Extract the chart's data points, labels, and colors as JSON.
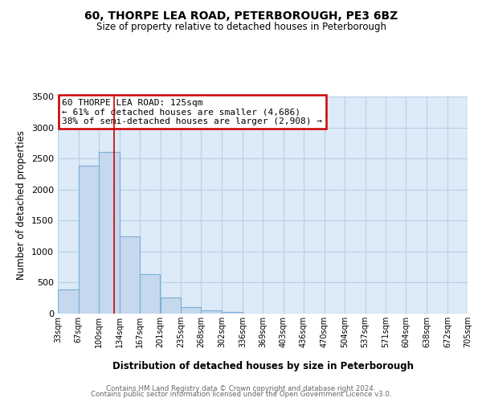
{
  "title": "60, THORPE LEA ROAD, PETERBOROUGH, PE3 6BZ",
  "subtitle": "Size of property relative to detached houses in Peterborough",
  "xlabel": "Distribution of detached houses by size in Peterborough",
  "ylabel": "Number of detached properties",
  "bar_color": "#c5d8ee",
  "bar_edgecolor": "#7aafd4",
  "background_color": "#ffffff",
  "plot_bg_color": "#ddeaf7",
  "grid_color": "#b8cfe8",
  "annotation_box_text": "60 THORPE LEA ROAD: 125sqm\n← 61% of detached houses are smaller (4,686)\n38% of semi-detached houses are larger (2,908) →",
  "annotation_box_color": "#cc0000",
  "vline_x": 125,
  "vline_color": "#cc0000",
  "ylim": [
    0,
    3500
  ],
  "yticks": [
    0,
    500,
    1000,
    1500,
    2000,
    2500,
    3000,
    3500
  ],
  "bar_edges": [
    33,
    67,
    100,
    134,
    167,
    201,
    235,
    268,
    302,
    336,
    369,
    403,
    436,
    470,
    504,
    537,
    571,
    604,
    638,
    672,
    705
  ],
  "bar_heights": [
    390,
    2390,
    2600,
    1250,
    630,
    260,
    100,
    50,
    30,
    0,
    0,
    0,
    0,
    0,
    0,
    0,
    0,
    0,
    0,
    0
  ],
  "xtick_labels": [
    "33sqm",
    "67sqm",
    "100sqm",
    "134sqm",
    "167sqm",
    "201sqm",
    "235sqm",
    "268sqm",
    "302sqm",
    "336sqm",
    "369sqm",
    "403sqm",
    "436sqm",
    "470sqm",
    "504sqm",
    "537sqm",
    "571sqm",
    "604sqm",
    "638sqm",
    "672sqm",
    "705sqm"
  ],
  "footer_line1": "Contains HM Land Registry data © Crown copyright and database right 2024.",
  "footer_line2": "Contains public sector information licensed under the Open Government Licence v3.0."
}
